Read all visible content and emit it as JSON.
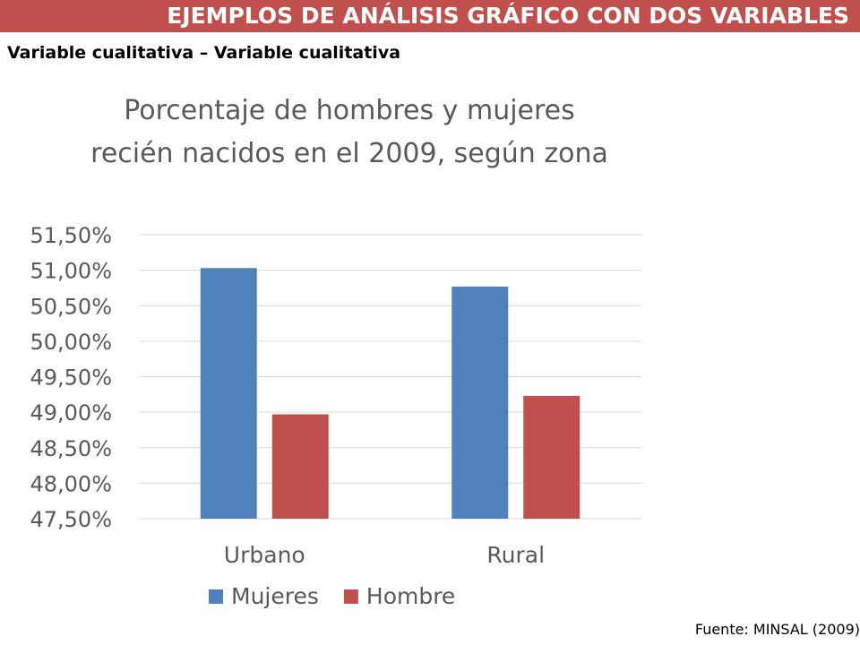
{
  "header": {
    "title": "EJEMPLOS DE ANÁLISIS GRÁFICO CON DOS VARIABLES",
    "subtitle": "Variable cualitativa – Variable cualitativa"
  },
  "chart_data": {
    "type": "bar",
    "title": "Porcentaje de hombres y mujeres recién nacidos en el 2009, según zona",
    "categories": [
      "Urbano",
      "Rural"
    ],
    "series": [
      {
        "name": "Mujeres",
        "values": [
          51.03,
          50.77
        ],
        "color": "#4f81bd"
      },
      {
        "name": "Hombre",
        "values": [
          48.97,
          49.23
        ],
        "color": "#c0504d"
      }
    ],
    "ylim": [
      47.5,
      51.5
    ],
    "yticks": [
      47.5,
      48.0,
      48.5,
      49.0,
      49.5,
      50.0,
      50.5,
      51.0,
      51.5
    ],
    "ytick_labels": [
      "47,50%",
      "48,00%",
      "48,50%",
      "49,00%",
      "49,50%",
      "50,00%",
      "50,50%",
      "51,00%",
      "51,50%"
    ],
    "grid": true,
    "legend_position": "bottom",
    "gridline_color": "#d9d9d9",
    "text_color": "#595959"
  },
  "footer": {
    "source": "Fuente: MINSAL (2009)"
  }
}
